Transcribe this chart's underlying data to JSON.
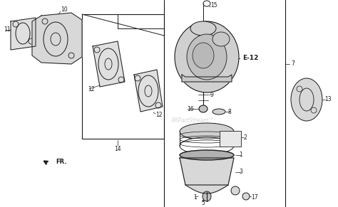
{
  "bg_color": "#ffffff",
  "line_color": "#1a1a1a",
  "label_color": "#000000",
  "watermark": "ARPartStream™",
  "watermark_color": "#bbbbbb",
  "bold_label": "E-12",
  "fig_width": 4.74,
  "fig_height": 2.91,
  "dpi": 100
}
